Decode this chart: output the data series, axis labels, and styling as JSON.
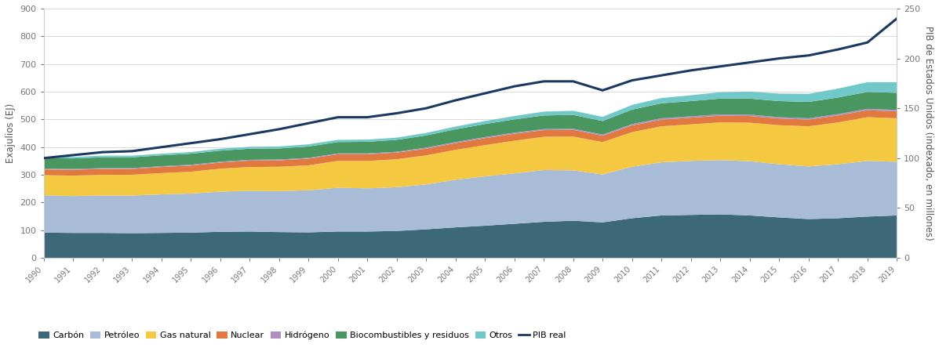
{
  "years": [
    1990,
    1991,
    1992,
    1993,
    1994,
    1995,
    1996,
    1997,
    1998,
    1999,
    2000,
    2001,
    2002,
    2003,
    2004,
    2005,
    2006,
    2007,
    2008,
    2009,
    2010,
    2011,
    2012,
    2013,
    2014,
    2015,
    2016,
    2017,
    2018,
    2019
  ],
  "carbon": [
    91,
    90,
    90,
    89,
    90,
    91,
    94,
    95,
    93,
    92,
    95,
    95,
    97,
    103,
    110,
    116,
    123,
    130,
    134,
    128,
    143,
    153,
    155,
    157,
    153,
    146,
    140,
    143,
    149,
    153
  ],
  "petroleo": [
    135,
    133,
    135,
    136,
    139,
    141,
    145,
    147,
    148,
    152,
    158,
    156,
    158,
    162,
    172,
    178,
    182,
    187,
    182,
    173,
    186,
    192,
    195,
    196,
    196,
    192,
    190,
    195,
    201,
    194
  ],
  "gas_natural": [
    73,
    74,
    75,
    75,
    77,
    79,
    83,
    86,
    88,
    90,
    97,
    99,
    101,
    105,
    108,
    113,
    118,
    120,
    122,
    117,
    125,
    130,
    132,
    136,
    139,
    141,
    145,
    151,
    158,
    157
  ],
  "nuclear": [
    20,
    21,
    21,
    21,
    22,
    22,
    22,
    23,
    23,
    24,
    24,
    24,
    24,
    24,
    24,
    25,
    25,
    24,
    24,
    23,
    24,
    24,
    24,
    24,
    24,
    24,
    24,
    25,
    25,
    25
  ],
  "hidrogeno": [
    3,
    3,
    3,
    3,
    3,
    3,
    3,
    3,
    3,
    3,
    3,
    3,
    3,
    4,
    4,
    4,
    4,
    4,
    4,
    4,
    5,
    5,
    5,
    5,
    5,
    5,
    5,
    5,
    5,
    5
  ],
  "biocombustibles": [
    38,
    38,
    39,
    39,
    39,
    40,
    40,
    40,
    40,
    41,
    41,
    42,
    43,
    44,
    46,
    47,
    48,
    49,
    50,
    49,
    52,
    54,
    55,
    57,
    58,
    58,
    59,
    60,
    61,
    62
  ],
  "otros": [
    5,
    5,
    6,
    6,
    6,
    6,
    7,
    7,
    7,
    8,
    8,
    8,
    8,
    9,
    10,
    11,
    12,
    14,
    15,
    15,
    17,
    19,
    21,
    23,
    25,
    27,
    29,
    32,
    35,
    38
  ],
  "pib_real": [
    100,
    103,
    106,
    107,
    111,
    115,
    119,
    124,
    129,
    135,
    141,
    141,
    145,
    150,
    158,
    165,
    172,
    177,
    177,
    168,
    178,
    183,
    188,
    192,
    196,
    200,
    203,
    209,
    216,
    240
  ],
  "colors": {
    "carbon": "#3d6878",
    "petroleo": "#a8bcd8",
    "gas_natural": "#f5c842",
    "nuclear": "#e07840",
    "hidrogeno": "#b090c0",
    "biocombustibles": "#4a9660",
    "otros": "#70c8c8"
  },
  "ylabel_left": "Exajulios (EJ)",
  "ylabel_right": "PIB de Estados Unidos (indexado, en millones)",
  "ylim_left": [
    0,
    900
  ],
  "ylim_right": [
    0,
    250
  ],
  "yticks_left": [
    0,
    100,
    200,
    300,
    400,
    500,
    600,
    700,
    800,
    900
  ],
  "yticks_right": [
    0,
    50,
    100,
    150,
    200,
    250
  ],
  "legend_labels": [
    "Carbón",
    "Petróleo",
    "Gas natural",
    "Nuclear",
    "Hidrógeno",
    "Biocombustibles y residuos",
    "Otros",
    "PIB real"
  ],
  "pib_color": "#1a3860",
  "background_color": "#ffffff",
  "grid_color": "#cccccc"
}
